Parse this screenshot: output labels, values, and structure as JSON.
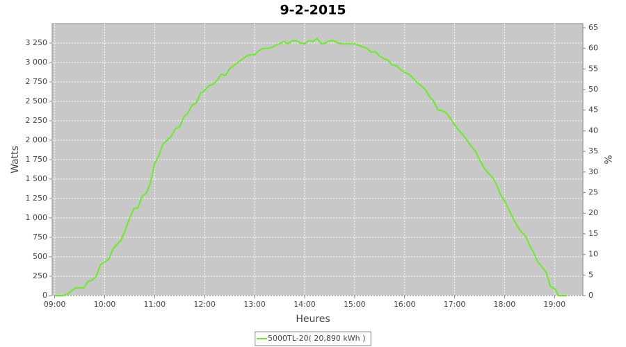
{
  "chart_data": {
    "type": "line",
    "title": "9-2-2015",
    "x_label": "Heures",
    "y_label": "Watts",
    "y2_label": "%",
    "x": [
      540,
      545,
      550,
      555,
      560,
      565,
      570,
      575,
      580,
      585,
      590,
      595,
      600,
      605,
      610,
      615,
      620,
      625,
      630,
      635,
      640,
      645,
      650,
      655,
      660,
      665,
      670,
      675,
      680,
      685,
      690,
      695,
      700,
      705,
      710,
      715,
      720,
      725,
      730,
      735,
      740,
      745,
      750,
      755,
      760,
      765,
      770,
      775,
      780,
      785,
      790,
      795,
      800,
      805,
      810,
      815,
      820,
      825,
      830,
      835,
      840,
      845,
      850,
      855,
      860,
      865,
      870,
      875,
      880,
      885,
      890,
      895,
      900,
      905,
      910,
      915,
      920,
      925,
      930,
      935,
      940,
      945,
      950,
      955,
      960,
      965,
      970,
      975,
      980,
      985,
      990,
      995,
      1000,
      1005,
      1010,
      1015,
      1020,
      1025,
      1030,
      1035,
      1040,
      1045,
      1050,
      1055,
      1060,
      1065,
      1070,
      1075,
      1080,
      1085,
      1090,
      1095,
      1100,
      1105,
      1110,
      1115,
      1120,
      1125,
      1130,
      1135,
      1140,
      1145,
      1150,
      1155
    ],
    "series": [
      {
        "name": "5000TL-20( 20,890 kWh )",
        "color": "#66ee22",
        "values": [
          0,
          0,
          0,
          20,
          60,
          100,
          100,
          100,
          180,
          200,
          250,
          400,
          430,
          470,
          600,
          660,
          720,
          850,
          1000,
          1120,
          1130,
          1280,
          1320,
          1450,
          1700,
          1800,
          1950,
          2000,
          2050,
          2150,
          2170,
          2300,
          2350,
          2450,
          2480,
          2600,
          2640,
          2700,
          2720,
          2770,
          2850,
          2830,
          2920,
          2960,
          3000,
          3040,
          3080,
          3100,
          3100,
          3150,
          3180,
          3180,
          3190,
          3220,
          3240,
          3270,
          3240,
          3280,
          3280,
          3250,
          3240,
          3280,
          3270,
          3310,
          3240,
          3250,
          3280,
          3280,
          3250,
          3240,
          3240,
          3240,
          3240,
          3220,
          3200,
          3180,
          3130,
          3140,
          3080,
          3050,
          3030,
          2970,
          2960,
          2910,
          2870,
          2850,
          2800,
          2740,
          2700,
          2650,
          2560,
          2500,
          2390,
          2380,
          2350,
          2280,
          2200,
          2130,
          2070,
          2000,
          1920,
          1860,
          1750,
          1650,
          1580,
          1530,
          1440,
          1300,
          1220,
          1110,
          1000,
          900,
          820,
          770,
          650,
          550,
          430,
          370,
          300,
          120,
          90,
          0,
          0,
          0
        ]
      }
    ],
    "xlim": [
      537,
      1174
    ],
    "xticks": [
      {
        "value": 540,
        "label": "09:00"
      },
      {
        "value": 600,
        "label": "10:00"
      },
      {
        "value": 660,
        "label": "11:00"
      },
      {
        "value": 720,
        "label": "12:00"
      },
      {
        "value": 780,
        "label": "13:00"
      },
      {
        "value": 840,
        "label": "14:00"
      },
      {
        "value": 900,
        "label": "15:00"
      },
      {
        "value": 960,
        "label": "16:00"
      },
      {
        "value": 1020,
        "label": "17:00"
      },
      {
        "value": 1080,
        "label": "18:00"
      },
      {
        "value": 1140,
        "label": "19:00"
      }
    ],
    "ylim": [
      0,
      3500
    ],
    "yticks": [
      0,
      250,
      500,
      750,
      {
        "value": 1000,
        "label": "1 000"
      },
      {
        "value": 1250,
        "label": "1 250"
      },
      {
        "value": 1500,
        "label": "1 500"
      },
      {
        "value": 1750,
        "label": "1 750"
      },
      {
        "value": 2000,
        "label": "2 000"
      },
      {
        "value": 2250,
        "label": "2 250"
      },
      {
        "value": 2500,
        "label": "2 500"
      },
      {
        "value": 2750,
        "label": "2 750"
      },
      {
        "value": 3000,
        "label": "3 000"
      },
      {
        "value": 3250,
        "label": "3 250"
      }
    ],
    "y2lim": [
      0,
      66
    ],
    "y2ticks": [
      0,
      5,
      10,
      15,
      20,
      25,
      30,
      35,
      40,
      45,
      50,
      55,
      60,
      65
    ],
    "grid": true,
    "plot_background": "#c8c8c8",
    "legend": "bottom"
  }
}
